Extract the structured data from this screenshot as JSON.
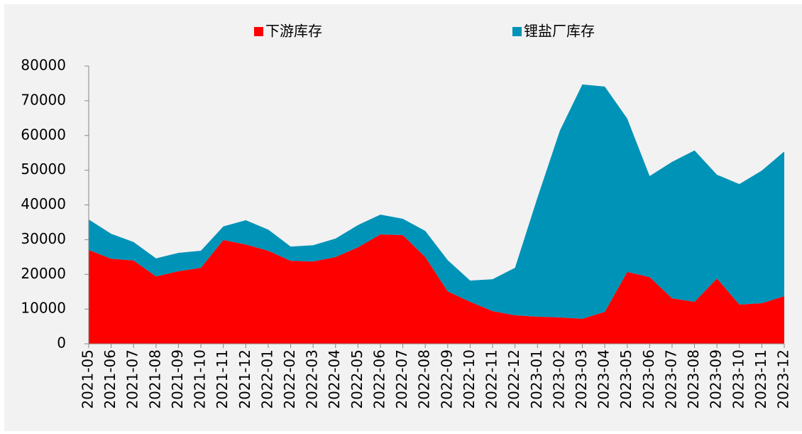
{
  "chart_data": {
    "type": "stacked_area",
    "categories": [
      "2021-05",
      "2021-06",
      "2021-07",
      "2021-08",
      "2021-09",
      "2021-10",
      "2021-11",
      "2021-12",
      "2022-01",
      "2022-02",
      "2022-03",
      "2022-04",
      "2022-05",
      "2022-06",
      "2022-07",
      "2022-08",
      "2022-09",
      "2022-10",
      "2022-11",
      "2022-12",
      "2023-01",
      "2023-02",
      "2023-03",
      "2023-04",
      "2023-05",
      "2023-06",
      "2023-07",
      "2023-08",
      "2023-09",
      "2023-10",
      "2023-11",
      "2023-12"
    ],
    "series": [
      {
        "name": "下游库存",
        "color": "#ff0000",
        "values": [
          27000,
          24500,
          24000,
          19400,
          20900,
          21900,
          29900,
          28600,
          26800,
          23900,
          23700,
          25000,
          27800,
          31500,
          31300,
          25000,
          15100,
          12100,
          9400,
          8200,
          7800,
          7600,
          7200,
          9200,
          20700,
          19200,
          13100,
          12100,
          18800,
          11300,
          11700,
          13700
        ]
      },
      {
        "name": "锂盐厂库存",
        "color": "#0093b8",
        "values": [
          8800,
          7200,
          5300,
          5200,
          5300,
          4900,
          3900,
          7000,
          6100,
          4100,
          4700,
          5300,
          6400,
          5700,
          4700,
          7500,
          9000,
          6100,
          9200,
          13700,
          34300,
          53800,
          67500,
          64900,
          44200,
          29100,
          39300,
          43600,
          29900,
          34700,
          38200,
          41700
        ]
      }
    ],
    "ylim": [
      0,
      80000
    ],
    "yticks": [
      0,
      10000,
      20000,
      30000,
      40000,
      50000,
      60000,
      70000,
      80000
    ],
    "legend": "top"
  }
}
